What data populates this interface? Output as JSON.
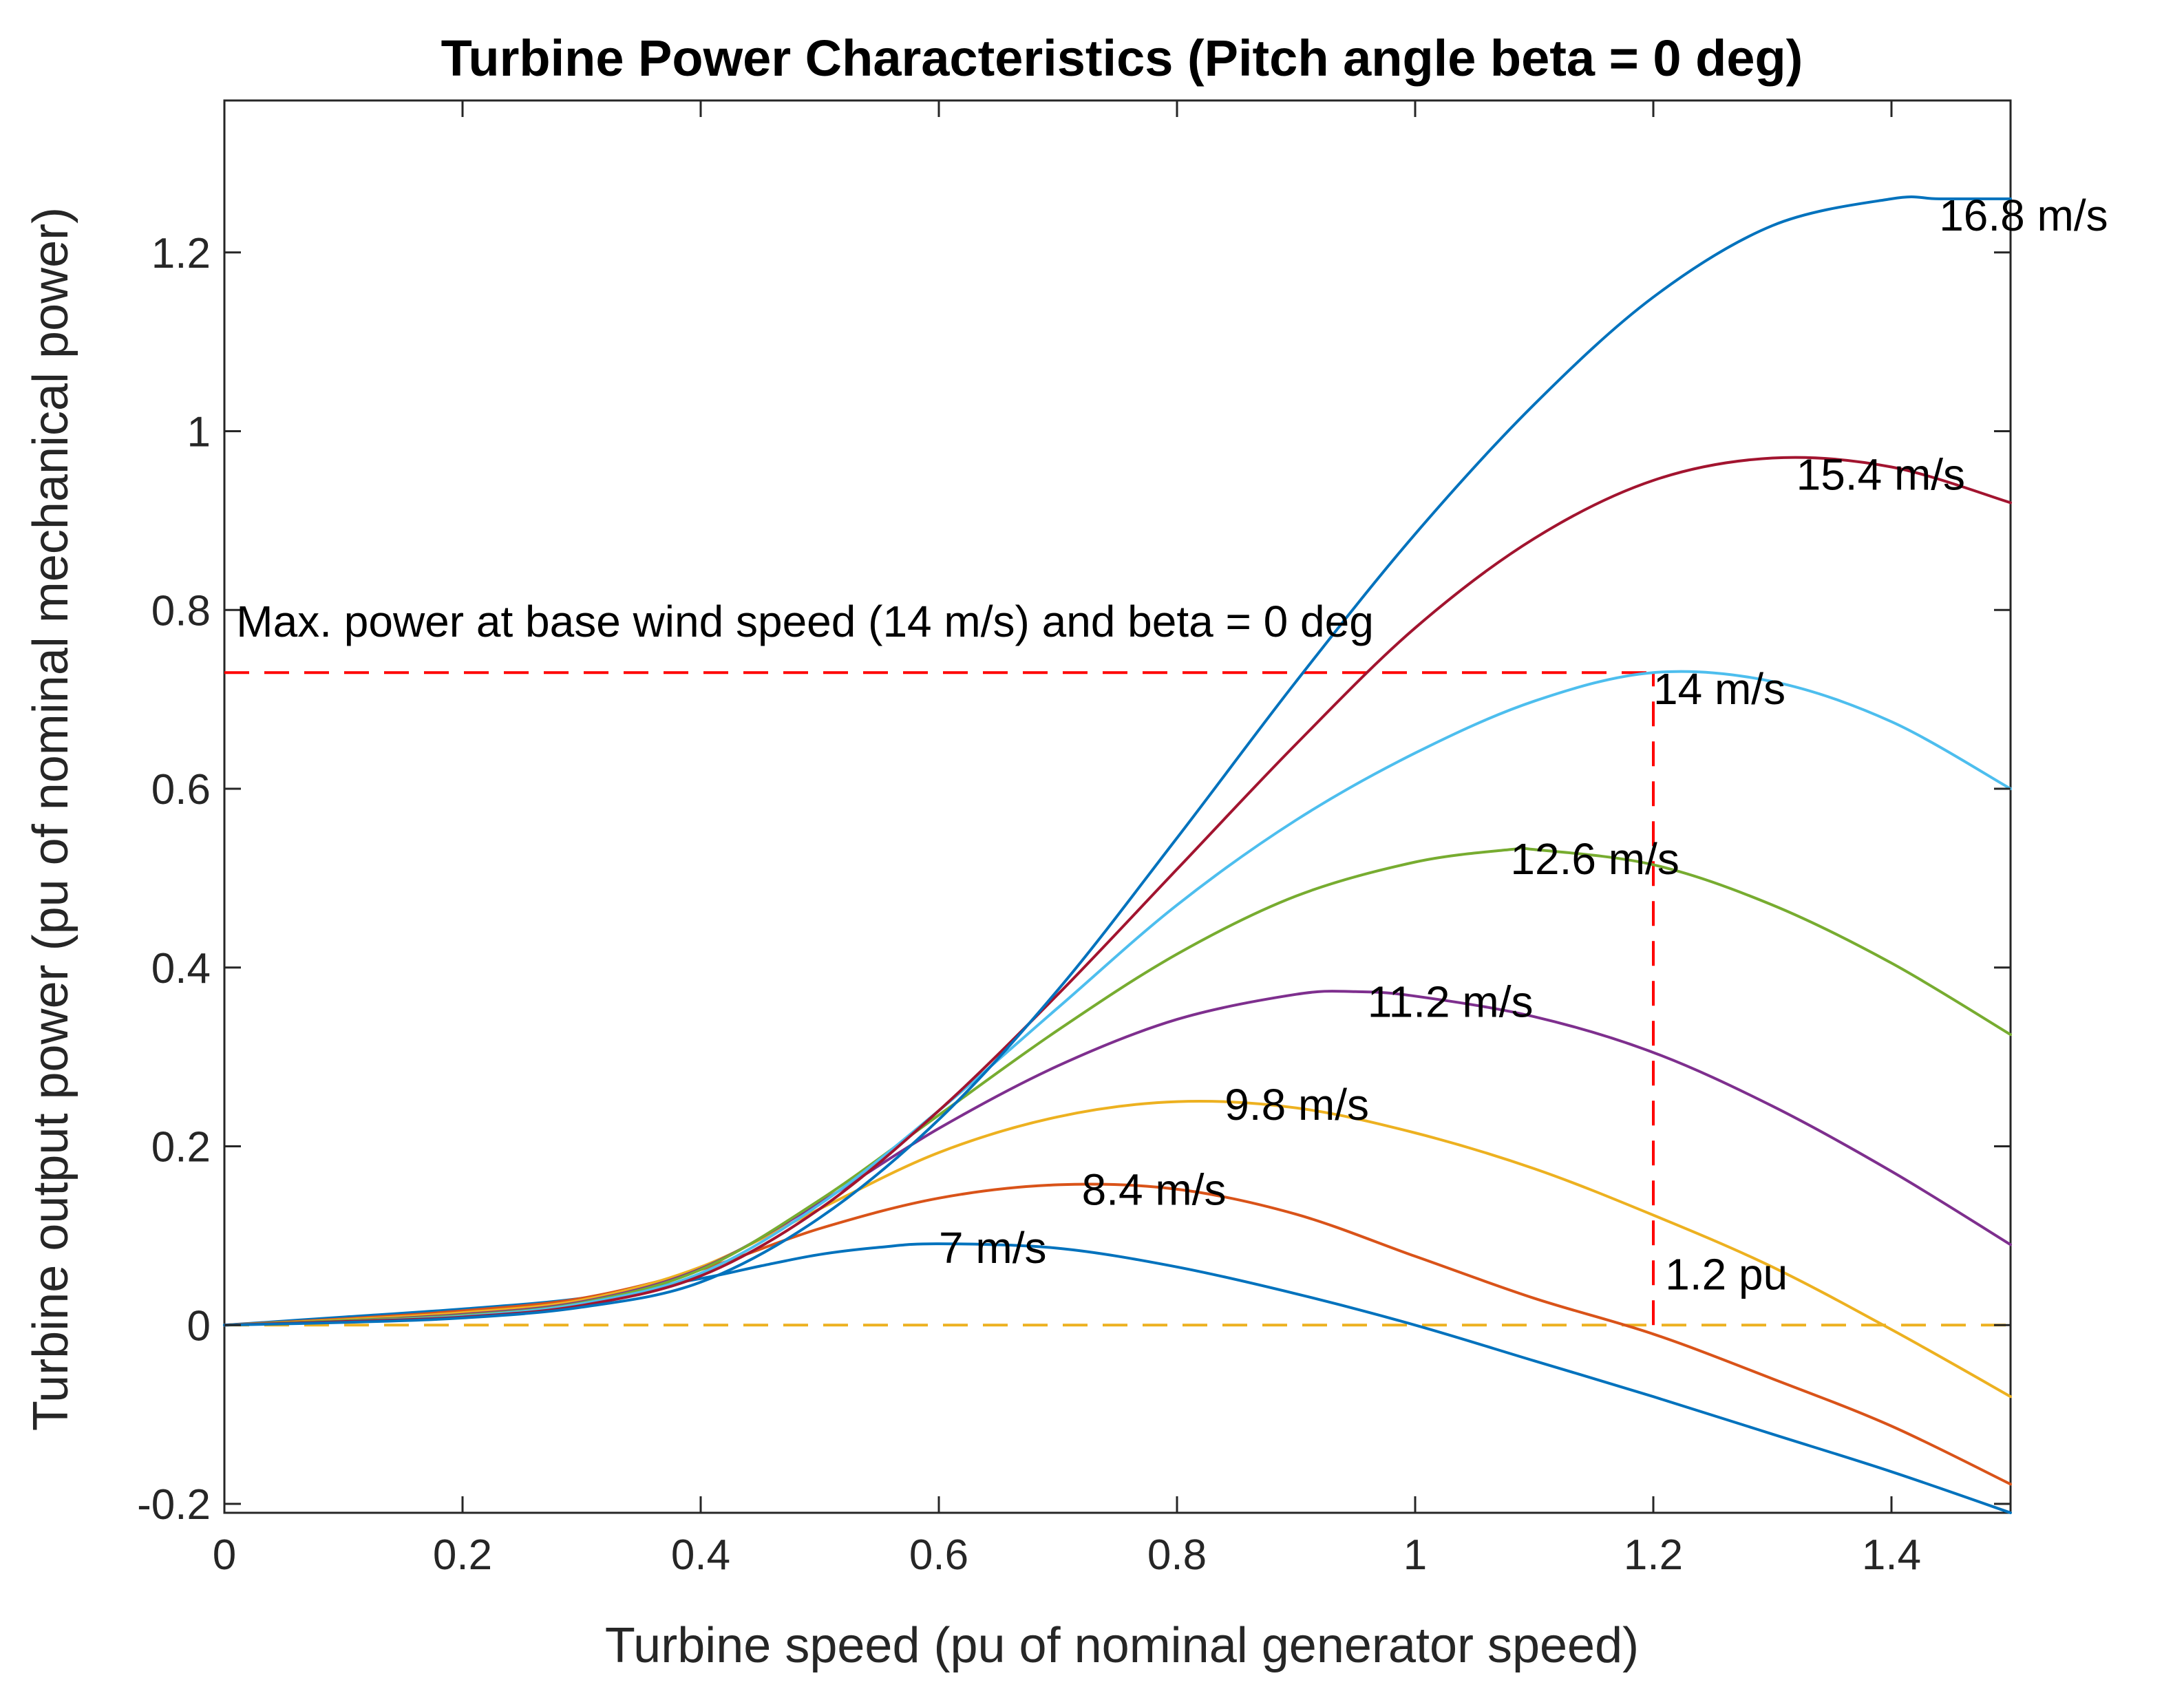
{
  "chart_data": {
    "type": "line",
    "title": "Turbine Power Characteristics (Pitch angle beta = 0 deg)",
    "xlabel": "Turbine speed (pu of nominal generator speed)",
    "ylabel": "Turbine output power (pu of nominal mechanical power)",
    "xlim": [
      0,
      1.5
    ],
    "ylim": [
      -0.21,
      1.37
    ],
    "xticks": [
      0,
      0.2,
      0.4,
      0.6,
      0.8,
      1,
      1.2,
      1.4
    ],
    "xtick_labels": [
      "0",
      "0.2",
      "0.4",
      "0.6",
      "0.8",
      "1",
      "1.2",
      "1.4"
    ],
    "yticks": [
      -0.2,
      0,
      0.2,
      0.4,
      0.6,
      0.8,
      1,
      1.2
    ],
    "ytick_labels": [
      "-0.2",
      "0",
      "0.2",
      "0.4",
      "0.6",
      "0.8",
      "1",
      "1.2"
    ],
    "grid": false,
    "series": [
      {
        "name": "7 m/s",
        "color": "#0072BD",
        "label_at": [
          0.6,
          0.085
        ],
        "x": [
          0,
          0.1,
          0.2,
          0.3,
          0.4,
          0.45,
          0.5,
          0.55,
          0.6,
          0.7,
          0.8,
          0.9,
          1.0,
          1.1,
          1.2,
          1.3,
          1.4,
          1.5
        ],
        "y": [
          0,
          0.009,
          0.018,
          0.03,
          0.052,
          0.066,
          0.079,
          0.087,
          0.091,
          0.086,
          0.065,
          0.035,
          0.0,
          -0.04,
          -0.08,
          -0.122,
          -0.164,
          -0.21
        ]
      },
      {
        "name": "8.4 m/s",
        "color": "#D95319",
        "label_at": [
          0.72,
          0.15
        ],
        "x": [
          0,
          0.1,
          0.2,
          0.3,
          0.4,
          0.5,
          0.6,
          0.7,
          0.8,
          0.9,
          1.0,
          1.1,
          1.2,
          1.3,
          1.4,
          1.5
        ],
        "y": [
          0,
          0.007,
          0.016,
          0.03,
          0.062,
          0.108,
          0.142,
          0.157,
          0.152,
          0.124,
          0.077,
          0.03,
          -0.01,
          -0.06,
          -0.113,
          -0.178
        ]
      },
      {
        "name": "9.8 m/s",
        "color": "#EDB120",
        "label_at": [
          0.84,
          0.245
        ],
        "x": [
          0,
          0.1,
          0.2,
          0.3,
          0.4,
          0.5,
          0.6,
          0.7,
          0.8,
          0.9,
          1.0,
          1.1,
          1.2,
          1.3,
          1.4,
          1.5
        ],
        "y": [
          0,
          0.006,
          0.014,
          0.028,
          0.065,
          0.13,
          0.193,
          0.233,
          0.25,
          0.243,
          0.215,
          0.175,
          0.123,
          0.065,
          -0.005,
          -0.08
        ]
      },
      {
        "name": "11.2 m/s",
        "color": "#7E2F8E",
        "label_at": [
          0.96,
          0.36
        ],
        "x": [
          0,
          0.1,
          0.2,
          0.3,
          0.4,
          0.5,
          0.6,
          0.7,
          0.8,
          0.9,
          0.95,
          1.0,
          1.1,
          1.2,
          1.3,
          1.4,
          1.5
        ],
        "y": [
          0,
          0.005,
          0.012,
          0.026,
          0.063,
          0.137,
          0.22,
          0.29,
          0.342,
          0.37,
          0.373,
          0.368,
          0.345,
          0.305,
          0.245,
          0.172,
          0.09
        ]
      },
      {
        "name": "12.6 m/s",
        "color": "#77AC30",
        "label_at": [
          1.08,
          0.52
        ],
        "x": [
          0,
          0.1,
          0.2,
          0.3,
          0.4,
          0.5,
          0.6,
          0.7,
          0.8,
          0.9,
          1.0,
          1.08,
          1.1,
          1.2,
          1.3,
          1.4,
          1.5
        ],
        "y": [
          0,
          0.005,
          0.011,
          0.025,
          0.062,
          0.14,
          0.235,
          0.33,
          0.415,
          0.48,
          0.518,
          0.532,
          0.532,
          0.515,
          0.47,
          0.405,
          0.325
        ]
      },
      {
        "name": "14 m/s",
        "color": "#4DBEEE",
        "label_at": [
          1.2,
          0.71
        ],
        "x": [
          0,
          0.1,
          0.2,
          0.3,
          0.4,
          0.5,
          0.6,
          0.7,
          0.8,
          0.9,
          1.0,
          1.1,
          1.2,
          1.3,
          1.4,
          1.5
        ],
        "y": [
          0,
          0.004,
          0.01,
          0.024,
          0.058,
          0.135,
          0.24,
          0.355,
          0.47,
          0.565,
          0.64,
          0.698,
          0.73,
          0.72,
          0.675,
          0.6
        ]
      },
      {
        "name": "15.4 m/s",
        "color": "#A2142F",
        "label_at": [
          1.32,
          0.95
        ],
        "x": [
          0,
          0.1,
          0.2,
          0.3,
          0.4,
          0.5,
          0.6,
          0.7,
          0.8,
          0.9,
          1.0,
          1.1,
          1.2,
          1.3,
          1.4,
          1.5
        ],
        "y": [
          0,
          0.004,
          0.009,
          0.022,
          0.055,
          0.13,
          0.24,
          0.37,
          0.51,
          0.65,
          0.78,
          0.88,
          0.945,
          0.97,
          0.96,
          0.92
        ]
      },
      {
        "name": "16.8 m/s",
        "color": "#0072BD",
        "label_at": [
          1.44,
          1.24
        ],
        "x": [
          0,
          0.1,
          0.2,
          0.3,
          0.4,
          0.5,
          0.6,
          0.7,
          0.8,
          0.9,
          1.0,
          1.1,
          1.2,
          1.3,
          1.4,
          1.44,
          1.5
        ],
        "y": [
          0,
          0.003,
          0.008,
          0.02,
          0.048,
          0.12,
          0.23,
          0.375,
          0.545,
          0.72,
          0.885,
          1.03,
          1.15,
          1.23,
          1.26,
          1.26,
          1.26
        ]
      }
    ],
    "reference_lines": {
      "zero_line": {
        "y": 0,
        "color": "#EDB120",
        "style": "dashed"
      },
      "max_power_line": {
        "y": 0.73,
        "x_end": 1.2,
        "color": "#FF0000",
        "style": "dashed"
      },
      "speed_line": {
        "x": 1.2,
        "y_start": 0,
        "y_end": 0.73,
        "color": "#FF0000",
        "style": "dashed"
      }
    },
    "annotations": {
      "max_power_text": "Max. power at base wind speed (14 m/s) and beta = 0 deg",
      "max_power_text_at": [
        0.01,
        0.77
      ],
      "speed_text": "1.2 pu",
      "speed_text_at": [
        1.21,
        0.04
      ]
    }
  }
}
